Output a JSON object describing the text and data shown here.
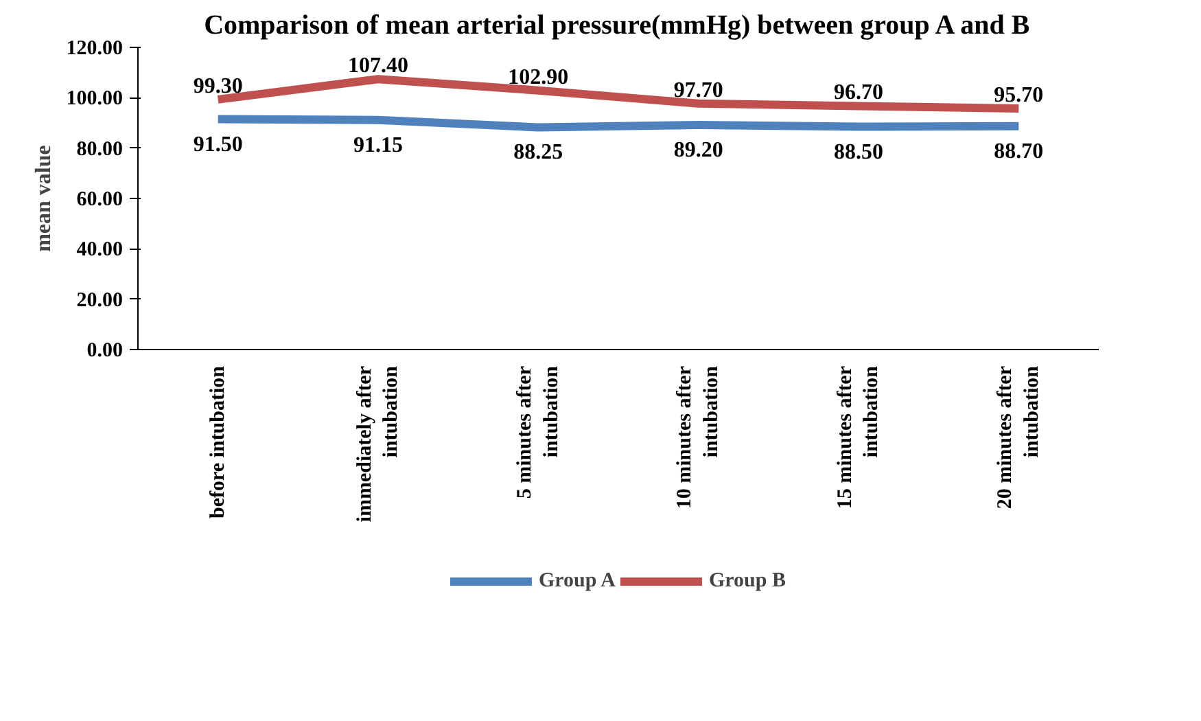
{
  "chart_data": {
    "type": "line",
    "title": "Comparison of mean arterial pressure(mmHg) between group A and B",
    "ylabel": "mean value",
    "categories": [
      "before intubation",
      "immediately after intubation",
      "5 minutes after intubation",
      "10 minutes after intubation",
      "15 minutes after intubation",
      "20 minutes after intubation"
    ],
    "series": [
      {
        "name": "Group A",
        "color": "#4f81bd",
        "values": [
          91.5,
          91.15,
          88.25,
          89.2,
          88.5,
          88.7
        ],
        "value_labels": [
          "91.50",
          "91.15",
          "88.25",
          "89.20",
          "88.50",
          "88.70"
        ]
      },
      {
        "name": "Group B",
        "color": "#c0504d",
        "values": [
          99.3,
          107.4,
          102.9,
          97.7,
          96.7,
          95.7
        ],
        "value_labels": [
          "99.30",
          "107.40",
          "102.90",
          "97.70",
          "96.70",
          "95.70"
        ]
      }
    ],
    "ylim": [
      0,
      120
    ],
    "yticks": [
      {
        "value": 0,
        "label": "0.00"
      },
      {
        "value": 20,
        "label": "20.00"
      },
      {
        "value": 40,
        "label": "40.00"
      },
      {
        "value": 60,
        "label": "60.00"
      },
      {
        "value": 80,
        "label": "80.00"
      },
      {
        "value": 100,
        "label": "100.00"
      },
      {
        "value": 120,
        "label": "120.00"
      }
    ],
    "legend": "bottom"
  }
}
